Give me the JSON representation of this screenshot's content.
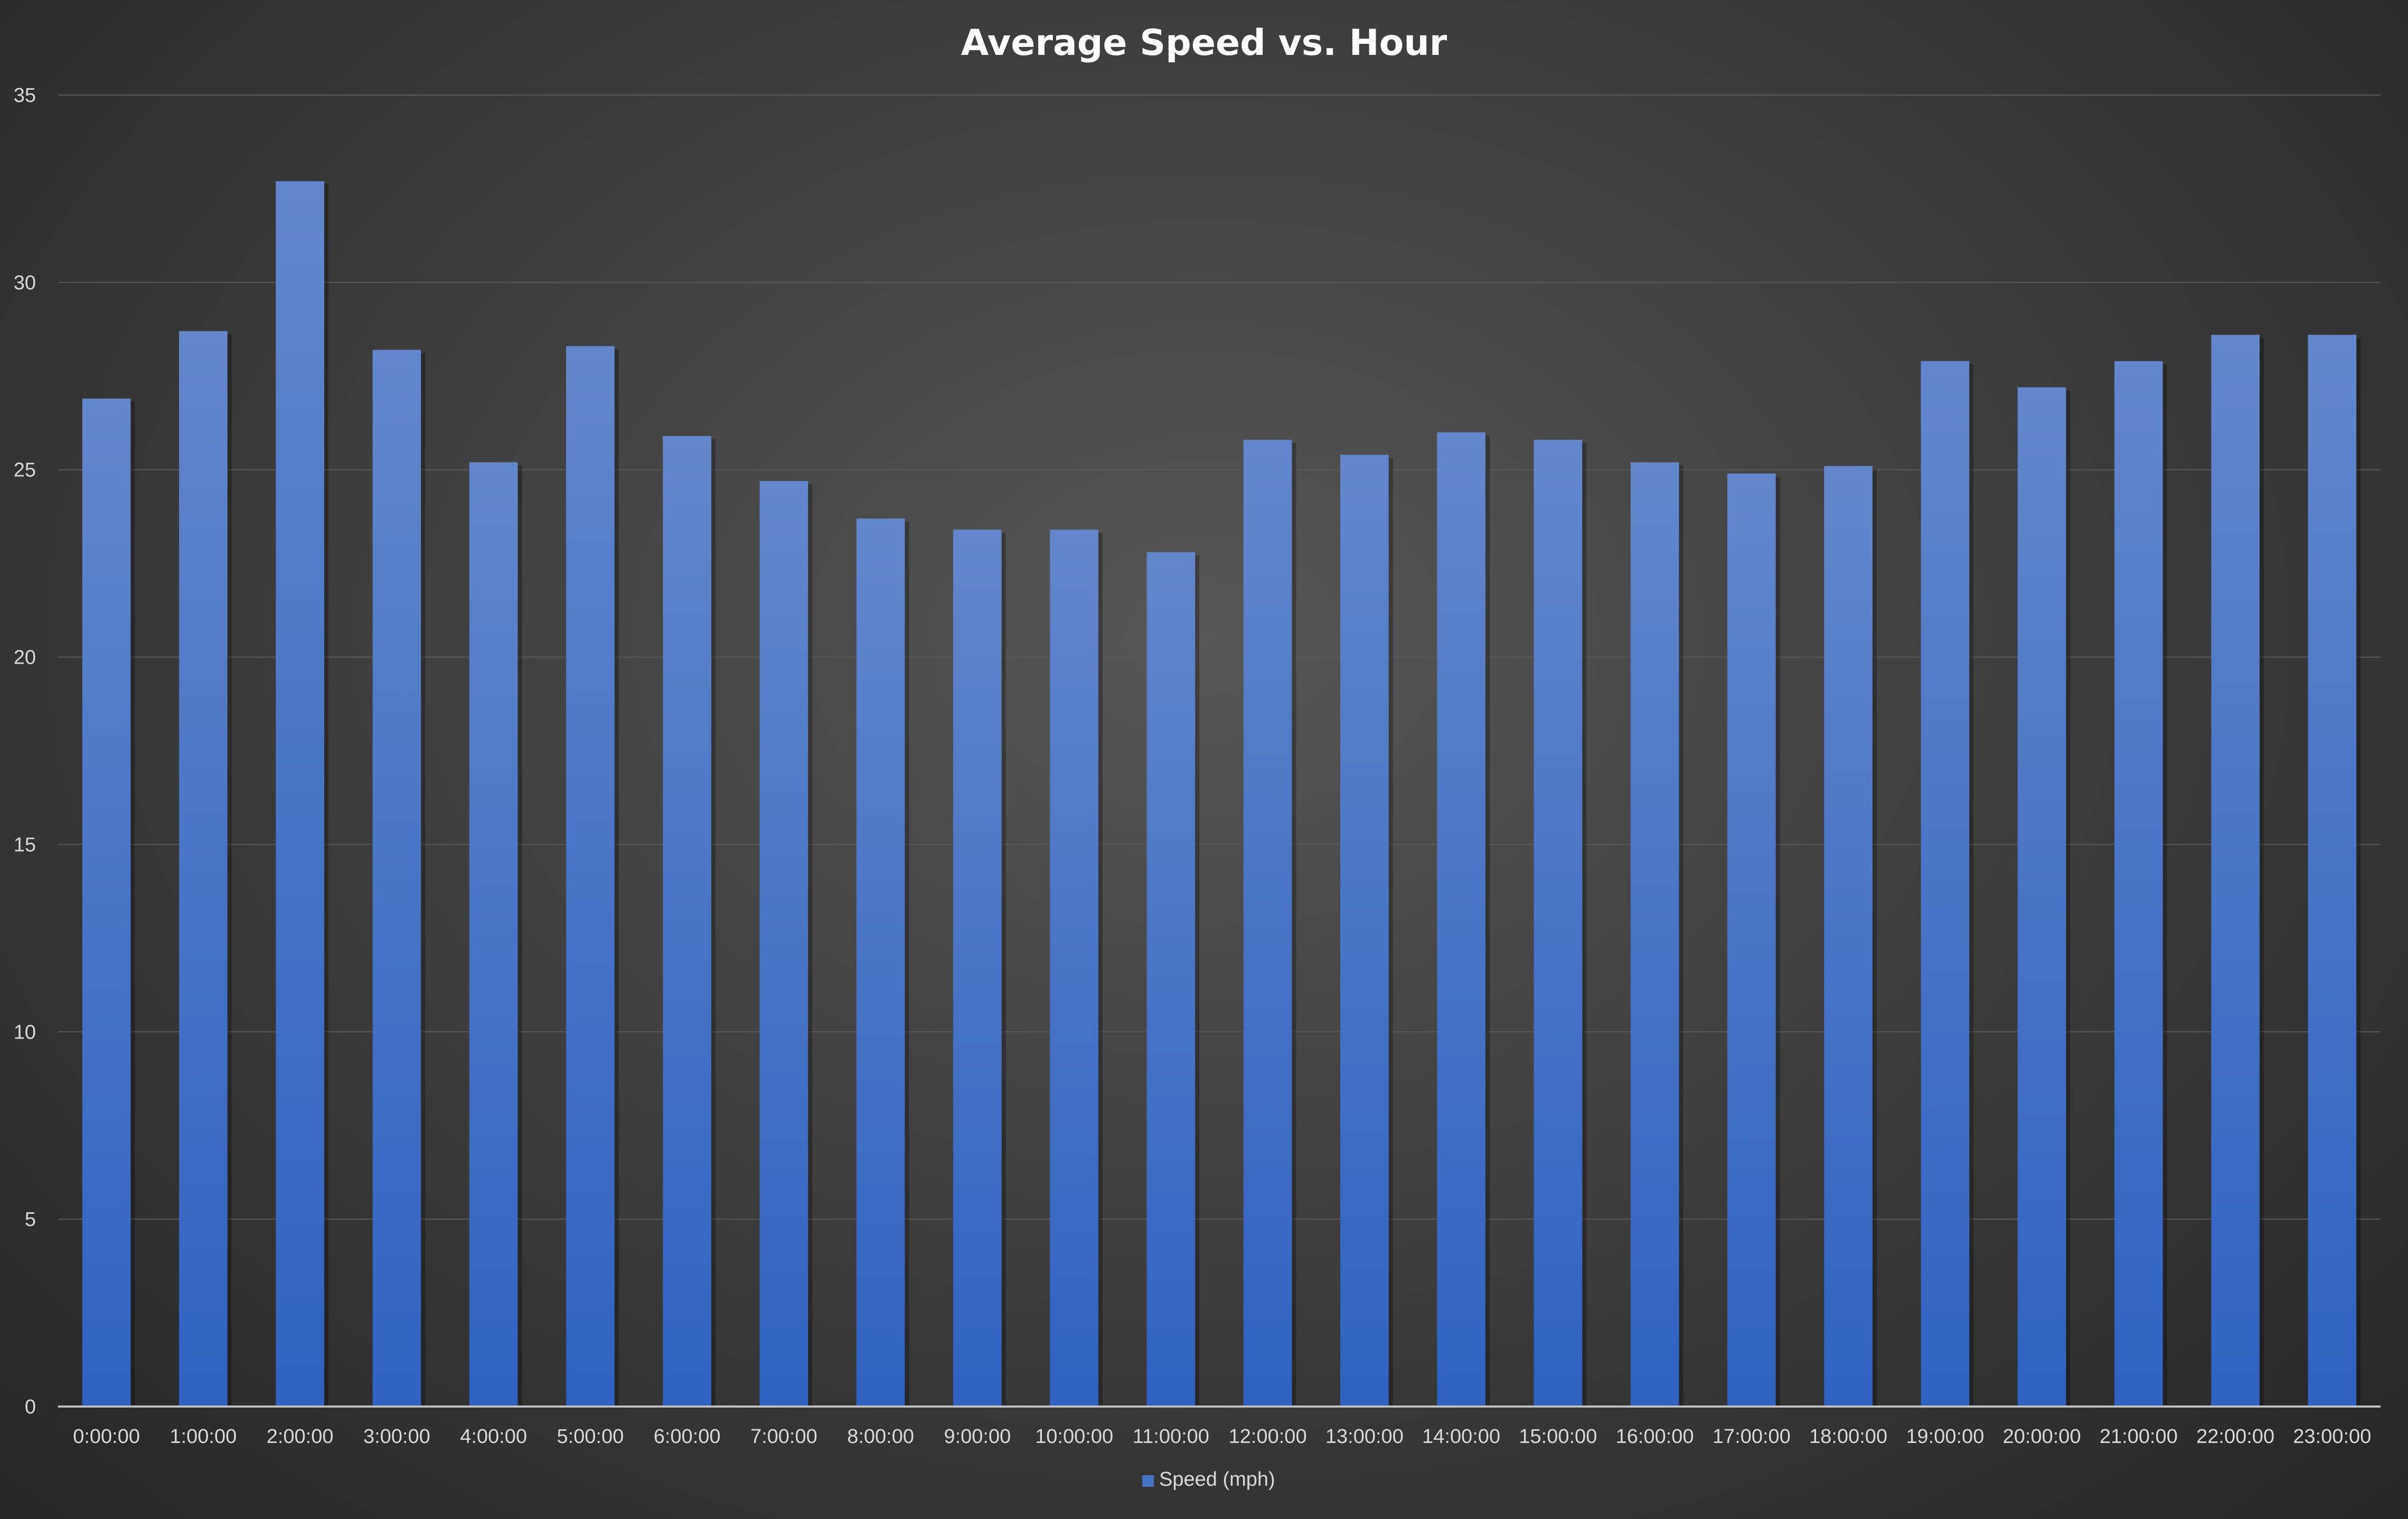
{
  "chart_data": {
    "type": "bar",
    "title": "Average Speed vs. Hour",
    "xlabel": "",
    "ylabel": "",
    "ylim": [
      0,
      35
    ],
    "yticks": [
      0,
      5,
      10,
      15,
      20,
      25,
      30,
      35
    ],
    "grid": true,
    "legend_position": "bottom",
    "categories": [
      "0:00:00",
      "1:00:00",
      "2:00:00",
      "3:00:00",
      "4:00:00",
      "5:00:00",
      "6:00:00",
      "7:00:00",
      "8:00:00",
      "9:00:00",
      "10:00:00",
      "11:00:00",
      "12:00:00",
      "13:00:00",
      "14:00:00",
      "15:00:00",
      "16:00:00",
      "17:00:00",
      "18:00:00",
      "19:00:00",
      "20:00:00",
      "21:00:00",
      "22:00:00",
      "23:00:00"
    ],
    "series": [
      {
        "name": "Speed (mph)",
        "color": "#4472c4",
        "values": [
          26.9,
          28.7,
          32.7,
          28.2,
          25.2,
          28.3,
          25.9,
          24.7,
          23.7,
          23.4,
          23.4,
          22.8,
          25.8,
          25.4,
          26.0,
          25.8,
          25.2,
          24.9,
          25.1,
          27.9,
          27.2,
          27.9,
          28.6,
          28.6
        ]
      }
    ]
  },
  "colors": {
    "background": "#404040",
    "bar_top": "#6287cc",
    "bar_bottom": "#2f62c1",
    "gridline": "#5a5a5a",
    "axis": "#bfbfbf",
    "text": "#d9d9d9",
    "title": "#ffffff"
  }
}
